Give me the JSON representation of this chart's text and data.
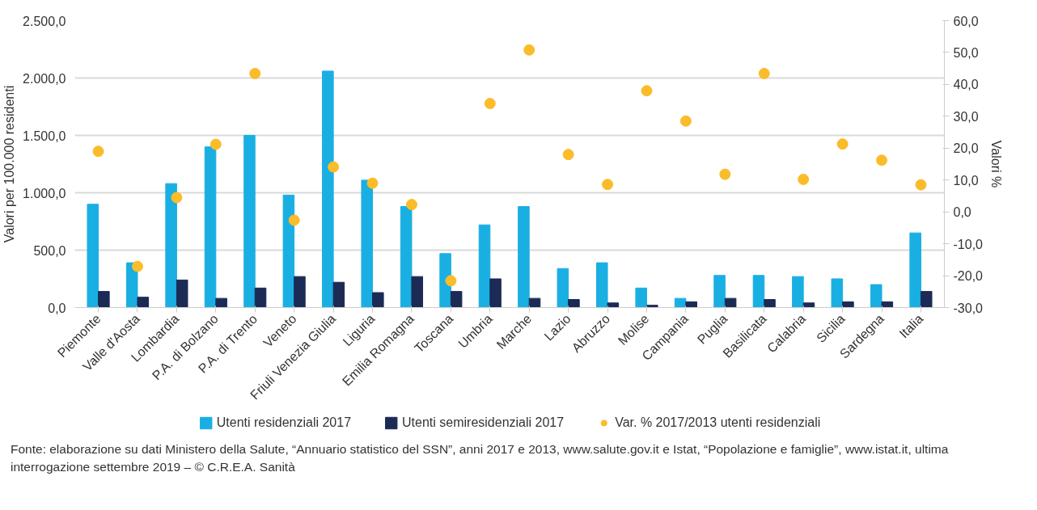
{
  "chart_data": {
    "type": "bar",
    "categories": [
      "Piemonte",
      "Valle d'Aosta",
      "Lombardia",
      "P.A. di Bolzano",
      "P.A. di Trento",
      "Veneto",
      "Friuli Venezia Giulia",
      "Liguria",
      "Emilia Romagna",
      "Toscana",
      "Umbria",
      "Marche",
      "Lazio",
      "Abruzzo",
      "Molise",
      "Campania",
      "Puglia",
      "Basilicata",
      "Calabria",
      "Sicilia",
      "Sardegna",
      "Italia"
    ],
    "series": [
      {
        "name": "Utenti residenziali 2017",
        "type": "bar",
        "color": "#1aafe3",
        "values": [
          900,
          390,
          1080,
          1400,
          1500,
          980,
          2060,
          1110,
          880,
          470,
          720,
          880,
          340,
          390,
          170,
          80,
          280,
          280,
          270,
          250,
          200,
          650
        ]
      },
      {
        "name": "Utenti semiresidenziali 2017",
        "type": "bar",
        "color": "#1c2b55",
        "values": [
          140,
          90,
          240,
          80,
          170,
          270,
          220,
          130,
          270,
          140,
          250,
          80,
          70,
          40,
          20,
          50,
          80,
          70,
          40,
          50,
          50,
          140
        ]
      },
      {
        "name": "Var. % 2017/2013 utenti residenziali",
        "type": "scatter",
        "axis": "y2",
        "color": "#fbbc2a",
        "values": [
          19.0,
          -17.1,
          4.5,
          21.2,
          43.4,
          -2.6,
          14.1,
          9.0,
          2.3,
          -21.6,
          34.0,
          50.8,
          18.0,
          8.6,
          38.0,
          28.5,
          11.8,
          43.4,
          10.2,
          21.3,
          16.2,
          8.5
        ]
      }
    ],
    "ylabel": "Valori per 100.000 residenti",
    "y2label": "Valori %",
    "ylim": [
      0,
      2500
    ],
    "yticks": [
      {
        "value": 0,
        "label": "0,0"
      },
      {
        "value": 500,
        "label": "500,0"
      },
      {
        "value": 1000,
        "label": "1.000,0"
      },
      {
        "value": 1500,
        "label": "1.500,0"
      },
      {
        "value": 2000,
        "label": "2.000,0"
      },
      {
        "value": 2500,
        "label": "2.500,0"
      }
    ],
    "y2lim": [
      -30,
      60
    ],
    "y2ticks": [
      {
        "value": -30,
        "label": "-30,0"
      },
      {
        "value": -20,
        "label": "-20,0"
      },
      {
        "value": -10,
        "label": "-10,0"
      },
      {
        "value": 0,
        "label": "0,0"
      },
      {
        "value": 10,
        "label": "10,0"
      },
      {
        "value": 20,
        "label": "20,0"
      },
      {
        "value": 30,
        "label": "30,0"
      },
      {
        "value": 40,
        "label": "40,0"
      },
      {
        "value": 50,
        "label": "50,0"
      },
      {
        "value": 60,
        "label": "60,0"
      }
    ],
    "grid": "y",
    "legend": "bottom",
    "marker": "circle",
    "annotations": [
      "Fonte: elaborazione su dati Ministero della Salute, “Annuario statistico del SSN”, anni 2017 e 2013, www.salute.gov.it e Istat, “Popolazione e famiglie”, www.istat.it, ultima interrogazione settembre 2019 – © C.R.E.A. Sanità"
    ]
  }
}
